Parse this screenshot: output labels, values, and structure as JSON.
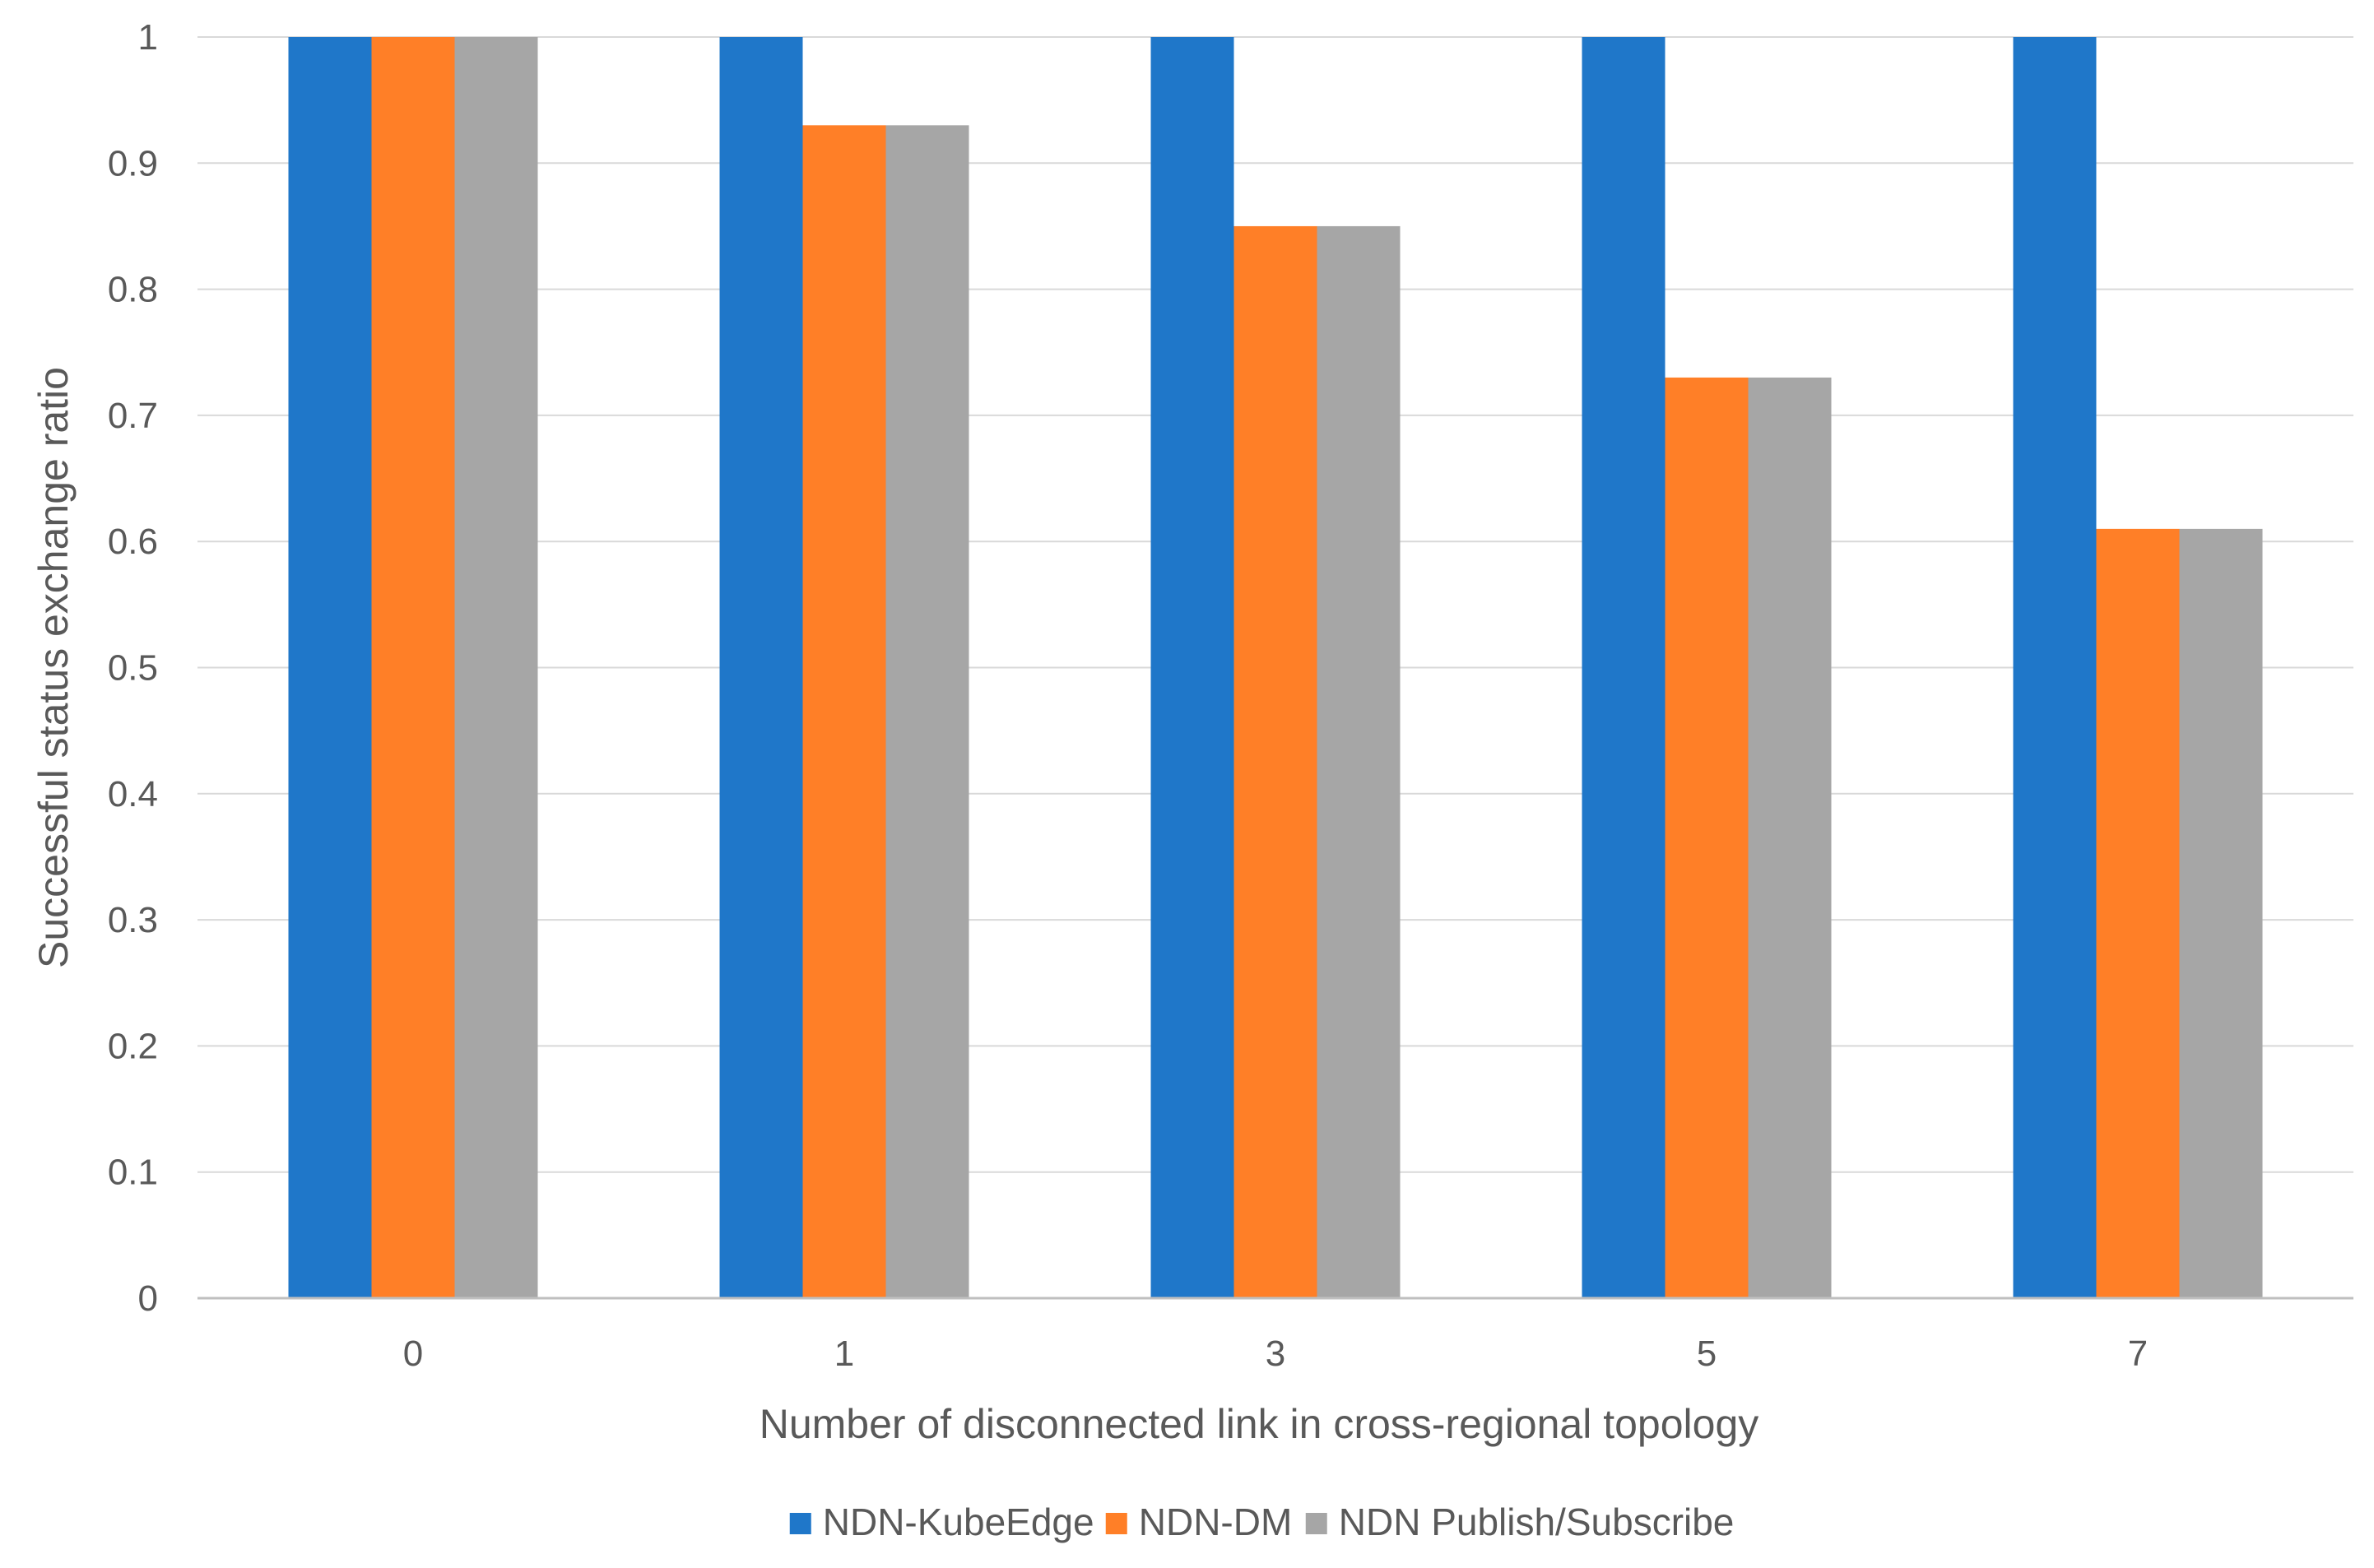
{
  "chart_data": {
    "type": "bar",
    "title": "",
    "categories": [
      "0",
      "1",
      "3",
      "5",
      "7"
    ],
    "series": [
      {
        "name": "NDN-KubeEdge",
        "color": "#1f77c9",
        "values": [
          1,
          1,
          1,
          1,
          1
        ]
      },
      {
        "name": "NDN-DM",
        "color": "#ff7f27",
        "values": [
          1,
          0.93,
          0.85,
          0.73,
          0.61
        ]
      },
      {
        "name": "NDN Publish/Subscribe",
        "color": "#a6a6a6",
        "values": [
          1,
          0.93,
          0.85,
          0.73,
          0.61
        ]
      }
    ],
    "xlabel": "Number of disconnected link in cross-regional topology",
    "ylabel": "Successful status exchange ratio",
    "ylim": [
      0,
      1
    ],
    "yticks": [
      "0",
      "0.1",
      "0.2",
      "0.3",
      "0.4",
      "0.5",
      "0.6",
      "0.7",
      "0.8",
      "0.9",
      "1"
    ],
    "grid": true,
    "legend": "bottom"
  }
}
